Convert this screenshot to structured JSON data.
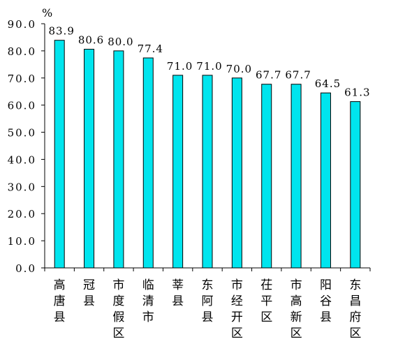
{
  "chart_data": {
    "type": "bar",
    "unit": "%",
    "categories": [
      "高唐县",
      "冠县",
      "市度假区",
      "临清市",
      "莘县",
      "东阿县",
      "市经开区",
      "茌平区",
      "市高新区",
      "阳谷县",
      "东昌府区"
    ],
    "values": [
      83.9,
      80.6,
      80.0,
      77.4,
      71.0,
      71.0,
      70.0,
      67.7,
      67.7,
      64.5,
      61.3
    ],
    "value_labels": [
      "83.9",
      "80.6",
      "80.0",
      "77.4",
      "71.0",
      "71.0",
      "70.0",
      "67.7",
      "67.7",
      "64.5",
      "61.3"
    ],
    "y_ticks": [
      "0.0",
      "10.0",
      "20.0",
      "30.0",
      "40.0",
      "50.0",
      "60.0",
      "70.0",
      "80.0",
      "90.0"
    ],
    "ylim": [
      0,
      90
    ],
    "bar_color": "#00E5EE",
    "grid": false,
    "legend": false
  }
}
